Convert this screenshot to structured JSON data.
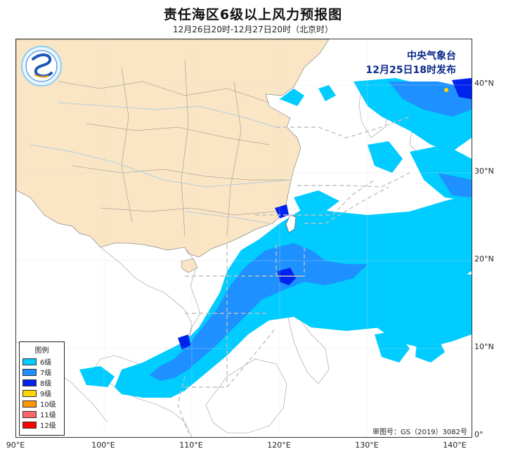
{
  "title": "责任海区6级以上风力预报图",
  "subtitle": "12月26日20时-12月27日20时（北京时）",
  "issuer": {
    "line1": "中央气象台",
    "line2": "12月25日18时发布"
  },
  "legend": {
    "title": "图例",
    "items": [
      {
        "label": "6级",
        "color": "#00ccff"
      },
      {
        "label": "7级",
        "color": "#1e90ff"
      },
      {
        "label": "8级",
        "color": "#0022ee"
      },
      {
        "label": "9级",
        "color": "#ffd700"
      },
      {
        "label": "10级",
        "color": "#ff9900"
      },
      {
        "label": "11级",
        "color": "#ff6666"
      },
      {
        "label": "12级",
        "color": "#ff0000"
      }
    ]
  },
  "review_number": "审图号：GS（2019）3082号",
  "lat_labels": [
    "40°N",
    "30°N",
    "20°N",
    "10°N",
    "0°"
  ],
  "lon_labels": [
    "90°E",
    "100°E",
    "110°E",
    "120°E",
    "130°E",
    "140°E"
  ],
  "colors": {
    "land_china": "#fae5c4",
    "sea_background": "#ffffff",
    "boundary": "#999999"
  },
  "icons": {
    "logo": "cma-logo-icon"
  }
}
